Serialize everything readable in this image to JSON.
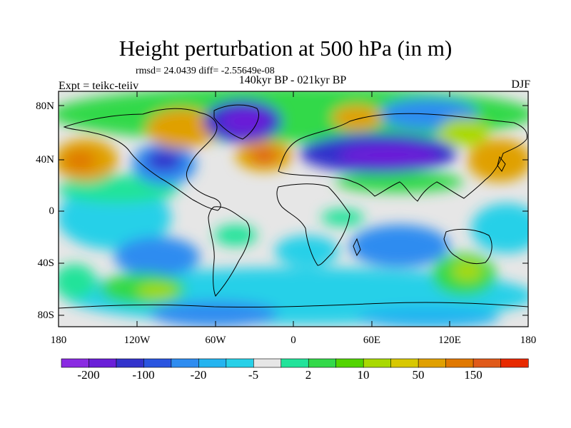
{
  "header": {
    "title": "Height perturbation at 500 hPa (in m)",
    "stats": "rmsd= 24.0439 diff= -2.55649e-08",
    "subtitle": "140kyr BP - 021kyr BP",
    "left_label": "Expt = teikc-teiiv",
    "right_label": "DJF"
  },
  "axes": {
    "y_ticks": [
      "80N",
      "40N",
      "0",
      "40S",
      "80S"
    ],
    "x_ticks": [
      "180",
      "120W",
      "60W",
      "0",
      "60E",
      "120E",
      "180"
    ]
  },
  "colorbar": {
    "labels": [
      "-200",
      "-100",
      "-20",
      "-5",
      "2",
      "10",
      "50",
      "150"
    ],
    "colors": [
      "#8a2be2",
      "#6a1fd8",
      "#3333cc",
      "#2a55e0",
      "#2e8cf0",
      "#24b4f0",
      "#28d0e8",
      "#e6e6e6",
      "#22e39a",
      "#33d94a",
      "#52d400",
      "#a9d900",
      "#d8c800",
      "#e0a000",
      "#e07800",
      "#e05a1a",
      "#e82a00"
    ]
  },
  "chart_data": {
    "type": "heatmap",
    "title": "Height perturbation at 500 hPa (in m)",
    "subtitle": "140kyr BP - 021kyr BP",
    "season": "DJF",
    "experiment": "teikc-teiiv",
    "rmsd": 24.0439,
    "diff": -2.55649e-08,
    "x_range": [
      -180,
      180
    ],
    "y_range": [
      -90,
      90
    ],
    "x_ticks": [
      "180",
      "120W",
      "60W",
      "0",
      "60E",
      "120E",
      "180"
    ],
    "y_ticks": [
      "80N",
      "40N",
      "0",
      "40S",
      "80S"
    ],
    "contour_levels": [
      -200,
      -150,
      -100,
      -50,
      -20,
      -10,
      -5,
      -2,
      2,
      5,
      10,
      20,
      50,
      100,
      150,
      200
    ],
    "anomaly_features": [
      {
        "lon": -70,
        "lat": 65,
        "value": 55
      },
      {
        "lon": -170,
        "lat": 38,
        "value": 60
      },
      {
        "lon": -20,
        "lat": 40,
        "value": 90
      },
      {
        "lon": -45,
        "lat": 72,
        "value": -120
      },
      {
        "lon": 60,
        "lat": 42,
        "value": -110
      },
      {
        "lon": 120,
        "lat": 72,
        "value": -30
      },
      {
        "lon": -120,
        "lat": 40,
        "value": -25
      },
      {
        "lon": 165,
        "lat": 38,
        "value": 55
      },
      {
        "lon": 105,
        "lat": 62,
        "value": 30
      },
      {
        "lon": 135,
        "lat": -45,
        "value": 25
      },
      {
        "lon": -140,
        "lat": -65,
        "value": 15
      }
    ]
  }
}
